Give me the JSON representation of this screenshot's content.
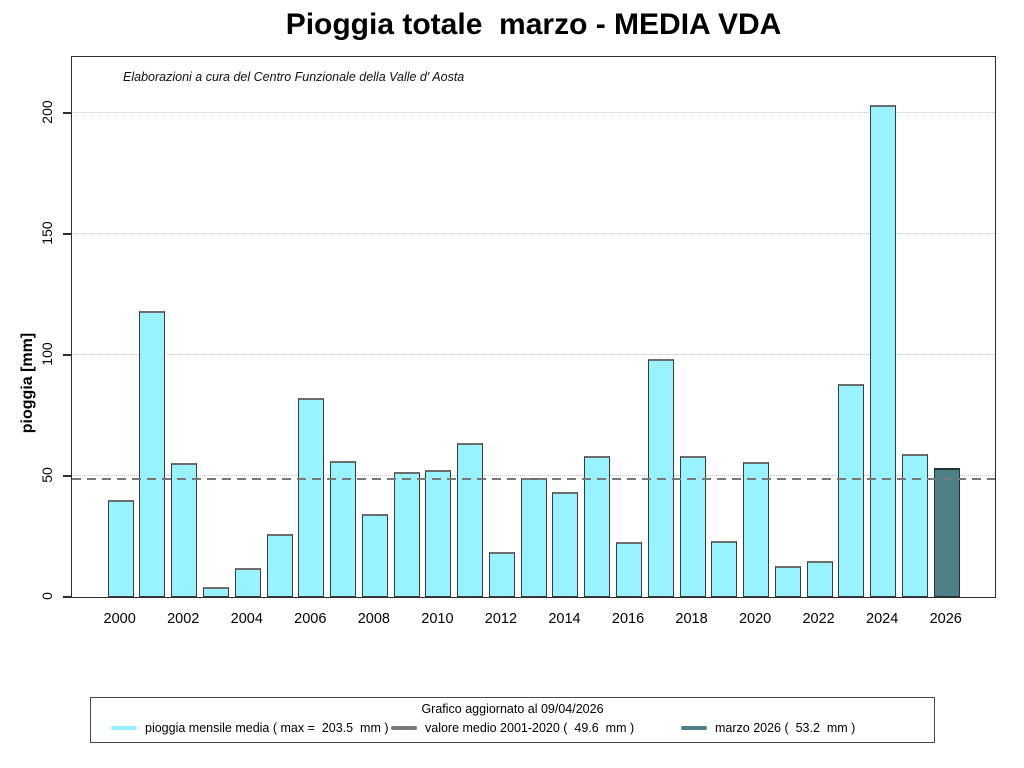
{
  "title": "Pioggia totale  marzo - MEDIA VDA",
  "subtitle": "Elaborazioni a cura del Centro Funzionale della Valle d' Aosta",
  "colors": {
    "bar_fill": "#98F2FF",
    "bar_border": "#3a3a3a",
    "highlight_fill": "#4D8187",
    "mean_line": "#787878",
    "grid": "#c9c9c9"
  },
  "y_axis": {
    "label": "pioggia [mm]",
    "ticks": [
      0,
      50,
      100,
      150,
      200
    ]
  },
  "x_axis": {
    "visible_labels": [
      "2000",
      "2002",
      "2004",
      "2006",
      "2008",
      "2010",
      "2012",
      "2014",
      "2016",
      "2018",
      "2020",
      "2022",
      "2024",
      "2026"
    ]
  },
  "chart_data": {
    "type": "bar",
    "title": "Pioggia totale  marzo - MEDIA VDA",
    "xlabel": "",
    "ylabel": "pioggia [mm]",
    "ylim": [
      0,
      224
    ],
    "grid": "horizontal dotted at 50, 100, 150, 200",
    "legend_position": "bottom",
    "categories": [
      2000,
      2001,
      2002,
      2003,
      2004,
      2005,
      2006,
      2007,
      2008,
      2009,
      2010,
      2011,
      2012,
      2013,
      2014,
      2015,
      2016,
      2017,
      2018,
      2019,
      2020,
      2021,
      2022,
      2023,
      2024,
      2025,
      2026
    ],
    "series": [
      {
        "name": "pioggia mensile media",
        "values": [
          40.3,
          118.2,
          55.5,
          4.3,
          11.9,
          25.9,
          82.2,
          56.4,
          34.4,
          51.8,
          52.6,
          63.7,
          18.8,
          49.0,
          43.4,
          58.3,
          22.7,
          98.2,
          58.4,
          23.2,
          55.8,
          12.7,
          14.8,
          88.2,
          203.5,
          59.3,
          53.2
        ]
      }
    ],
    "max_value": 203.5,
    "highlight_bar": {
      "category": 2026,
      "value": 53.2,
      "note": "marzo 2026 drawn in dark teal"
    },
    "reference_line": {
      "value": 49.6,
      "style": "dashed",
      "label": "valore medio 2001-2020"
    }
  },
  "legend": {
    "title": "Grafico aggiornato al 09/04/2026",
    "items": [
      {
        "label": "pioggia mensile media ( max =  203.5  mm )",
        "color": "#98F2FF"
      },
      {
        "label": "valore medio 2001-2020 (  49.6  mm )",
        "color": "#787878"
      },
      {
        "label": "marzo 2026 (  53.2  mm )",
        "color": "#4D8187"
      }
    ]
  }
}
